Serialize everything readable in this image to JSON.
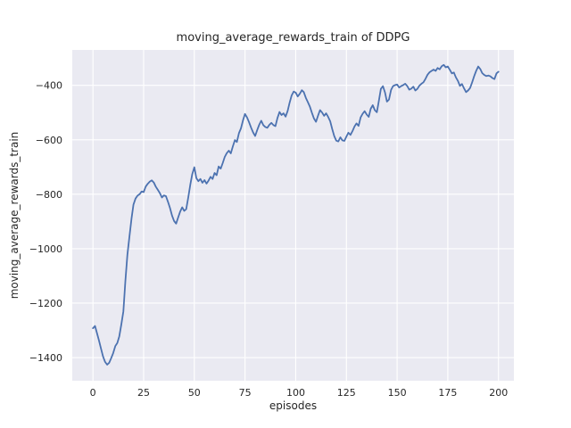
{
  "figure": {
    "background": "#ffffff"
  },
  "chart_data": {
    "type": "line",
    "title": "moving_average_rewards_train of DDPG",
    "xlabel": "episodes",
    "ylabel": "moving_average_rewards_train",
    "legend_position": "none",
    "grid": true,
    "xlim": [
      -10.2,
      207.6
    ],
    "ylim": [
      -1485,
      -270
    ],
    "xticks": {
      "values": [
        0,
        25,
        50,
        75,
        100,
        125,
        150,
        175,
        200
      ],
      "labels": [
        "0",
        "25",
        "50",
        "75",
        "100",
        "125",
        "150",
        "175",
        "200"
      ]
    },
    "yticks": {
      "values": [
        -400,
        -600,
        -800,
        -1000,
        -1200,
        -1400
      ],
      "labels": [
        "−400",
        "−600",
        "−800",
        "−1000",
        "−1200",
        "−1400"
      ]
    },
    "style": {
      "plot_background": "#EAEAF2",
      "grid_color": "#FFFFFF",
      "grid_width": 1.1,
      "text_color": "#262626",
      "line_color": "#4C72B0",
      "line_width": 1.8
    },
    "x": [
      0,
      1,
      2,
      3,
      4,
      5,
      6,
      7,
      8,
      9,
      10,
      11,
      12,
      13,
      14,
      15,
      16,
      17,
      18,
      19,
      20,
      21,
      22,
      23,
      24,
      25,
      26,
      27,
      28,
      29,
      30,
      31,
      32,
      33,
      34,
      35,
      36,
      37,
      38,
      39,
      40,
      41,
      42,
      43,
      44,
      45,
      46,
      47,
      48,
      49,
      50,
      51,
      52,
      53,
      54,
      55,
      56,
      57,
      58,
      59,
      60,
      61,
      62,
      63,
      64,
      65,
      66,
      67,
      68,
      69,
      70,
      71,
      72,
      73,
      74,
      75,
      76,
      77,
      78,
      79,
      80,
      81,
      82,
      83,
      84,
      85,
      86,
      87,
      88,
      89,
      90,
      91,
      92,
      93,
      94,
      95,
      96,
      97,
      98,
      99,
      100,
      101,
      102,
      103,
      104,
      105,
      106,
      107,
      108,
      109,
      110,
      111,
      112,
      113,
      114,
      115,
      116,
      117,
      118,
      119,
      120,
      121,
      122,
      123,
      124,
      125,
      126,
      127,
      128,
      129,
      130,
      131,
      132,
      133,
      134,
      135,
      136,
      137,
      138,
      139,
      140,
      141,
      142,
      143,
      144,
      145,
      146,
      147,
      148,
      149,
      150,
      151,
      152,
      153,
      154,
      155,
      156,
      157,
      158,
      159,
      160,
      161,
      162,
      163,
      164,
      165,
      166,
      167,
      168,
      169,
      170,
      171,
      172,
      173,
      174,
      175,
      176,
      177,
      178,
      179,
      180,
      181,
      182,
      183,
      184,
      185,
      186,
      187,
      188,
      189,
      190,
      191,
      192,
      193,
      194,
      195,
      196,
      197,
      198,
      199,
      200
    ],
    "series": [
      {
        "name": "moving_average_rewards_train",
        "color": "#4C72B0",
        "values": [
          -1292,
          -1284,
          -1310,
          -1338,
          -1368,
          -1396,
          -1416,
          -1426,
          -1419,
          -1402,
          -1383,
          -1358,
          -1346,
          -1322,
          -1278,
          -1230,
          -1120,
          -1022,
          -955,
          -890,
          -838,
          -816,
          -805,
          -800,
          -790,
          -792,
          -772,
          -762,
          -754,
          -749,
          -757,
          -772,
          -784,
          -796,
          -812,
          -804,
          -807,
          -828,
          -850,
          -878,
          -898,
          -908,
          -886,
          -864,
          -848,
          -861,
          -855,
          -812,
          -765,
          -726,
          -701,
          -741,
          -752,
          -744,
          -758,
          -748,
          -761,
          -750,
          -736,
          -744,
          -722,
          -730,
          -698,
          -706,
          -686,
          -663,
          -649,
          -640,
          -650,
          -624,
          -601,
          -608,
          -576,
          -558,
          -528,
          -505,
          -518,
          -536,
          -556,
          -573,
          -586,
          -564,
          -545,
          -530,
          -546,
          -553,
          -556,
          -545,
          -538,
          -546,
          -550,
          -520,
          -498,
          -509,
          -503,
          -515,
          -494,
          -464,
          -437,
          -423,
          -427,
          -441,
          -431,
          -418,
          -425,
          -446,
          -462,
          -479,
          -501,
          -522,
          -534,
          -511,
          -491,
          -500,
          -512,
          -503,
          -516,
          -532,
          -561,
          -586,
          -603,
          -606,
          -591,
          -602,
          -604,
          -588,
          -574,
          -582,
          -568,
          -551,
          -540,
          -549,
          -518,
          -504,
          -495,
          -507,
          -516,
          -486,
          -473,
          -491,
          -499,
          -458,
          -413,
          -403,
          -426,
          -460,
          -452,
          -417,
          -403,
          -399,
          -397,
          -408,
          -403,
          -399,
          -394,
          -403,
          -416,
          -412,
          -405,
          -419,
          -413,
          -401,
          -394,
          -389,
          -376,
          -361,
          -352,
          -347,
          -342,
          -347,
          -336,
          -341,
          -330,
          -325,
          -334,
          -331,
          -343,
          -356,
          -353,
          -371,
          -384,
          -402,
          -395,
          -411,
          -425,
          -419,
          -410,
          -389,
          -366,
          -347,
          -331,
          -340,
          -355,
          -362,
          -366,
          -364,
          -367,
          -373,
          -377,
          -356,
          -350
        ]
      }
    ]
  }
}
